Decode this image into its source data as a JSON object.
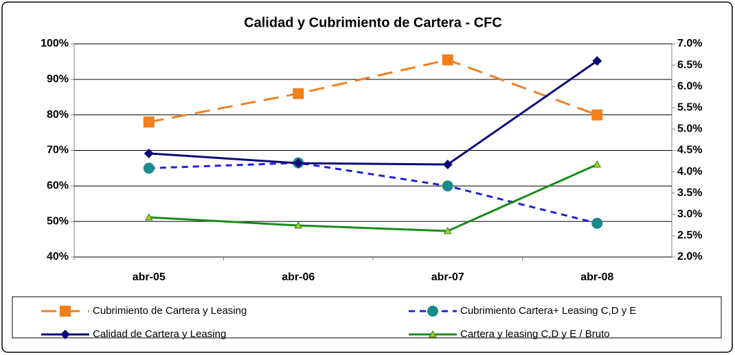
{
  "chart_data": {
    "type": "line",
    "title": "Calidad y Cubrimiento de Cartera - CFC",
    "categories": [
      "abr-05",
      "abr-06",
      "abr-07",
      "abr-08"
    ],
    "series": [
      {
        "name": "Cubrimiento de Cartera y Leasing",
        "color": "#f07f1e",
        "line_style": "dashed",
        "marker": "square",
        "values": [
          78,
          86,
          95.5,
          80
        ]
      },
      {
        "name": "Cubrimiento Cartera+ Leasing C,D y E",
        "color": "#1f1fe0",
        "marker_color": "#1a8a8a",
        "line_style": "dotted",
        "marker": "circle",
        "values": [
          65,
          66.5,
          60,
          49.5
        ]
      },
      {
        "name": "Calidad de Cartera y Leasing",
        "color": "#0a0a7a",
        "line_style": "solid",
        "marker": "diamond",
        "axis": "y2",
        "values": [
          4.43,
          4.2,
          4.17,
          6.6
        ]
      },
      {
        "name": "Cartera y leasing C,D y E / Bruto",
        "color": "#1a8a1a",
        "marker_color": "#b5c81e",
        "line_style": "solid",
        "marker": "triangle",
        "axis": "y2",
        "values": [
          2.93,
          2.74,
          2.61,
          4.17
        ]
      }
    ],
    "ylim": [
      40,
      100
    ],
    "yticks": [
      {
        "value": 40,
        "label": "40%"
      },
      {
        "value": 50,
        "label": "50%"
      },
      {
        "value": 60,
        "label": "60%"
      },
      {
        "value": 70,
        "label": "70%"
      },
      {
        "value": 80,
        "label": "80%"
      },
      {
        "value": 90,
        "label": "90%"
      },
      {
        "value": 100,
        "label": "100%"
      }
    ],
    "y2lim": [
      2,
      7
    ],
    "y2ticks": [
      {
        "value": 2,
        "label": "2.0%"
      },
      {
        "value": 2.5,
        "label": "2.5%"
      },
      {
        "value": 3,
        "label": "3.0%"
      },
      {
        "value": 3.5,
        "label": "3.5%"
      },
      {
        "value": 4,
        "label": "4.0%"
      },
      {
        "value": 4.5,
        "label": "4.5%"
      },
      {
        "value": 5,
        "label": "5.0%"
      },
      {
        "value": 5.5,
        "label": "5.5%"
      },
      {
        "value": 6,
        "label": "6.0%"
      },
      {
        "value": 6.5,
        "label": "6.5%"
      },
      {
        "value": 7,
        "label": "7.0%"
      }
    ],
    "grid": true,
    "legend": "bottom"
  }
}
